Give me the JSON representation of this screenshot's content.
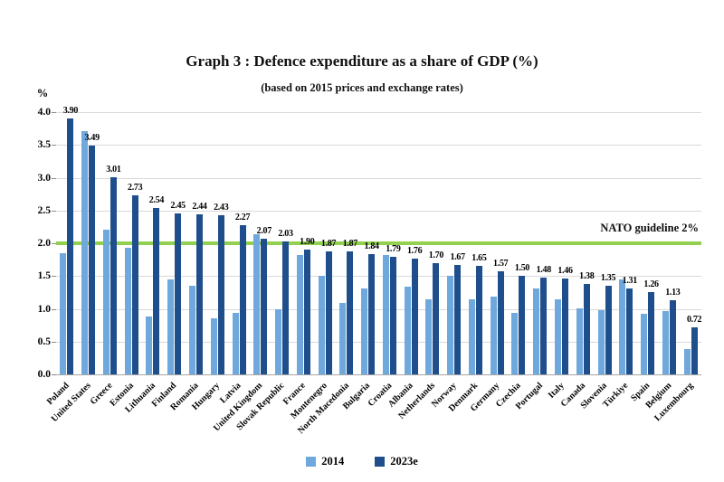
{
  "chart_data": {
    "type": "bar",
    "title": "Graph 3 : Defence expenditure as a share of GDP (%)",
    "subtitle": "(based on 2015 prices and exchange rates)",
    "ylabel": "%",
    "xlabel": "",
    "ylim": [
      0,
      4.0
    ],
    "ytick_step": 0.5,
    "grid": true,
    "legend_position": "bottom",
    "background_color": "#ffffff",
    "gridline_color": "#d9d9d9",
    "categories": [
      "Poland",
      "United States",
      "Greece",
      "Estonia",
      "Lithuania",
      "Finland",
      "Romania",
      "Hungary",
      "Latvia",
      "United Kingdom",
      "Slovak Republic",
      "France",
      "Montenegro",
      "North Macedonia",
      "Bulgaria",
      "Croatia",
      "Albania",
      "Netherlands",
      "Norway",
      "Denmark",
      "Germany",
      "Czechia",
      "Portugal",
      "Italy",
      "Canada",
      "Slovenia",
      "Türkiye",
      "Spain",
      "Belgium",
      "Luxembourg"
    ],
    "series": [
      {
        "name": "2014",
        "color": "#6FA8DC",
        "data_labels": false,
        "values": [
          1.85,
          3.71,
          2.21,
          1.93,
          0.88,
          1.45,
          1.35,
          0.86,
          0.94,
          2.14,
          0.99,
          1.82,
          1.5,
          1.09,
          1.31,
          1.82,
          1.34,
          1.15,
          1.51,
          1.15,
          1.19,
          0.94,
          1.31,
          1.14,
          1.01,
          0.98,
          1.45,
          0.92,
          0.97,
          0.38
        ]
      },
      {
        "name": "2023e",
        "color": "#1F4E8C",
        "data_labels": true,
        "values": [
          3.9,
          3.49,
          3.01,
          2.73,
          2.54,
          2.45,
          2.44,
          2.43,
          2.27,
          2.07,
          2.03,
          1.9,
          1.87,
          1.87,
          1.84,
          1.79,
          1.76,
          1.7,
          1.67,
          1.65,
          1.57,
          1.5,
          1.48,
          1.46,
          1.38,
          1.35,
          1.31,
          1.26,
          1.13,
          0.72
        ]
      }
    ],
    "reference_line": {
      "value": 2.0,
      "label": "NATO guideline 2%",
      "color": "#92D050"
    }
  }
}
